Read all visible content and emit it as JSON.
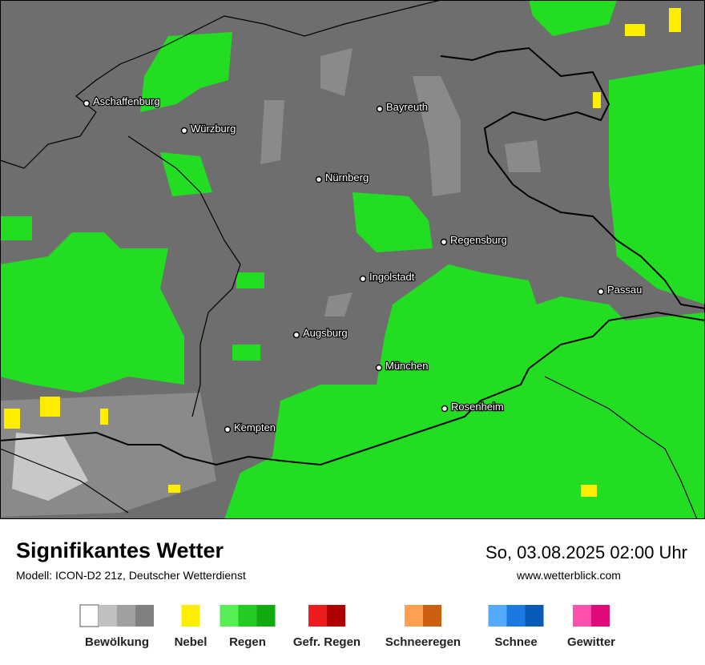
{
  "header": {
    "title": "Signifikantes Wetter",
    "subtitle": "Modell: ICON-D2 21z, Deutscher Wetterdienst",
    "datetime": "So, 03.08.2025 02:00 Uhr",
    "website": "www.wetterblick.com"
  },
  "cities": [
    "Aschaffenburg",
    "Bayreuth",
    "Würzburg",
    "Nürnberg",
    "Regensburg",
    "Ingolstadt",
    "Passau",
    "Augsburg",
    "München",
    "Rosenheim",
    "Kempten"
  ],
  "legend": [
    {
      "label": "Bewölkung",
      "colors": [
        "#ffffff",
        "#c0c0c0",
        "#a0a0a0",
        "#808080"
      ]
    },
    {
      "label": "Nebel",
      "colors": [
        "#ffee00"
      ]
    },
    {
      "label": "Regen",
      "colors": [
        "#55ee55",
        "#22cc22",
        "#11aa11"
      ]
    },
    {
      "label": "Gefr. Regen",
      "colors": [
        "#ee1c1c",
        "#b00000"
      ]
    },
    {
      "label": "Schneeregen",
      "colors": [
        "#ffa050",
        "#cc6010"
      ]
    },
    {
      "label": "Schnee",
      "colors": [
        "#55aaff",
        "#1a7ae0",
        "#0a5ab8"
      ]
    },
    {
      "label": "Gewitter",
      "colors": [
        "#ff50b0",
        "#e00a78"
      ]
    }
  ]
}
